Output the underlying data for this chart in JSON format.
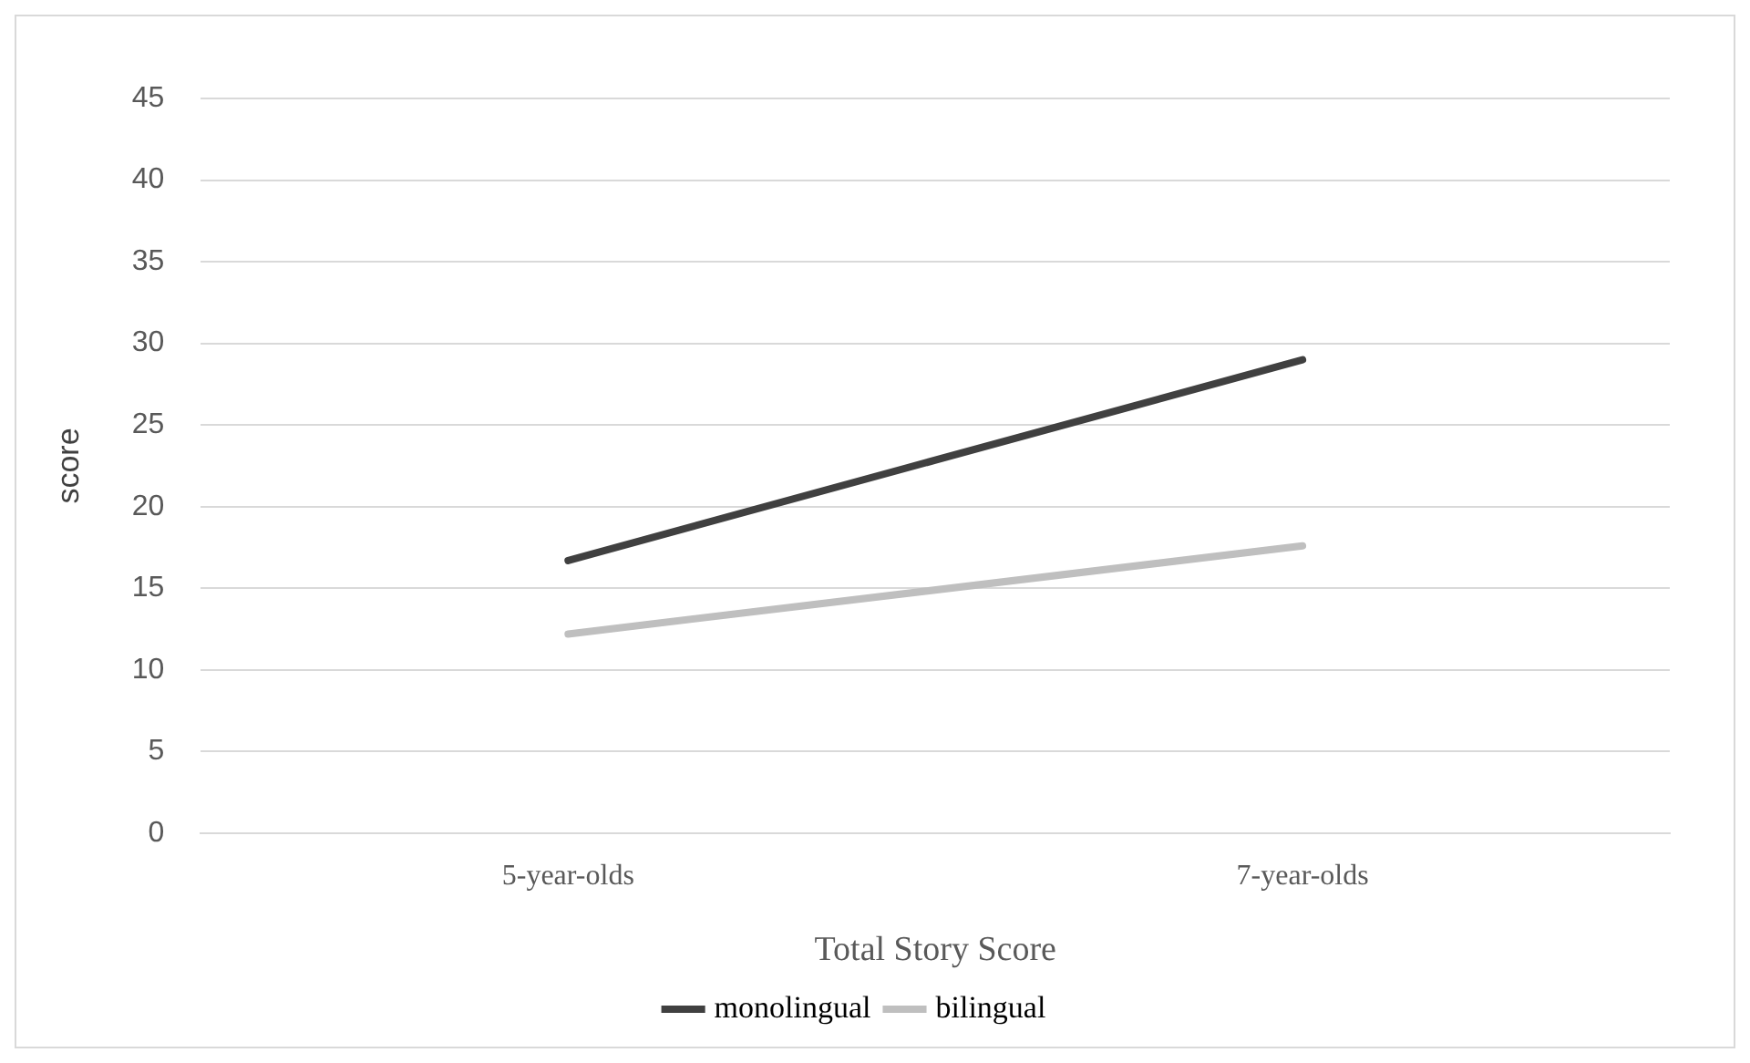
{
  "chart_data": {
    "type": "line",
    "xlabel": "Total Story Score",
    "ylabel": "score",
    "categories": [
      "5-year-olds",
      "7-year-olds"
    ],
    "series": [
      {
        "name": "monolingual",
        "color": "#404040",
        "values": [
          16.7,
          29.0
        ]
      },
      {
        "name": "bilingual",
        "color": "#bfbfbf",
        "values": [
          12.2,
          17.6
        ]
      }
    ],
    "ylim": [
      0,
      45
    ],
    "yticks": [
      0,
      5,
      10,
      15,
      20,
      25,
      30,
      35,
      40,
      45
    ],
    "grid": "y",
    "legend": "bottom",
    "marker": "none"
  }
}
